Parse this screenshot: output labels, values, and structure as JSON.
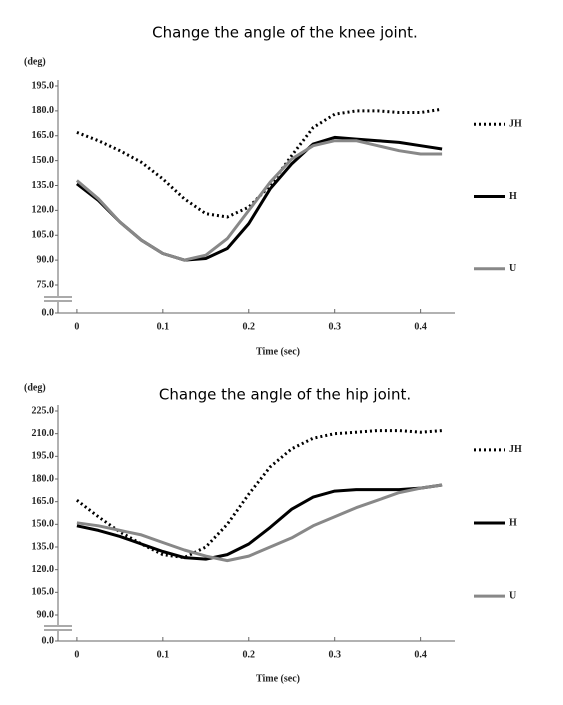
{
  "chart_data": [
    {
      "type": "line",
      "title": "Change the angle of the knee joint.",
      "ylabel": "(deg)",
      "xlabel": "Time (sec)",
      "x": [
        0,
        0.025,
        0.05,
        0.075,
        0.1,
        0.125,
        0.15,
        0.175,
        0.2,
        0.225,
        0.25,
        0.275,
        0.3,
        0.325,
        0.35,
        0.375,
        0.4,
        0.425
      ],
      "series": [
        {
          "name": "JH",
          "color": "#000000",
          "dash": "dotted",
          "values": [
            167,
            162,
            156,
            149,
            139,
            127,
            118,
            116,
            122,
            135,
            153,
            170,
            178,
            180,
            180,
            179,
            179,
            181
          ]
        },
        {
          "name": "H",
          "color": "#000000",
          "dash": "solid",
          "values": [
            136,
            126,
            113,
            102,
            94,
            90,
            91,
            97,
            112,
            133,
            148,
            160,
            164,
            163,
            162,
            161,
            159,
            157
          ]
        },
        {
          "name": "U",
          "color": "#888888",
          "dash": "solid",
          "values": [
            138,
            127,
            113,
            102,
            94,
            90,
            93,
            103,
            120,
            137,
            151,
            159,
            162,
            162,
            159,
            156,
            154,
            154
          ]
        }
      ],
      "xlim": [
        -0.022,
        0.44
      ],
      "xticks": [
        0,
        0.1,
        0.2,
        0.3,
        0.4
      ],
      "ylim": [
        0,
        195
      ],
      "yticks": [
        {
          "value": 0,
          "label": "0.0"
        },
        {
          "value": 75,
          "label": "75.0"
        },
        {
          "value": 90,
          "label": "90.0"
        },
        {
          "value": 105,
          "label": "105.0"
        },
        {
          "value": 120,
          "label": "120.0"
        },
        {
          "value": 135,
          "label": "135.0"
        },
        {
          "value": 150,
          "label": "150.0"
        },
        {
          "value": 165,
          "label": "165.0"
        },
        {
          "value": 180,
          "label": "180.0"
        },
        {
          "value": 195,
          "label": "195.0"
        }
      ],
      "y_axis_break": true,
      "grid": false,
      "legend": "right"
    },
    {
      "type": "line",
      "title": "Change the angle of the hip joint.",
      "ylabel": "(deg)",
      "xlabel": "Time (sec)",
      "x": [
        0,
        0.025,
        0.05,
        0.075,
        0.1,
        0.125,
        0.15,
        0.175,
        0.2,
        0.225,
        0.25,
        0.275,
        0.3,
        0.325,
        0.35,
        0.375,
        0.4,
        0.425
      ],
      "series": [
        {
          "name": "JH",
          "color": "#000000",
          "dash": "dotted",
          "values": [
            166,
            155,
            145,
            137,
            130,
            128,
            135,
            150,
            170,
            188,
            200,
            207,
            210,
            211,
            212,
            212,
            211,
            212
          ]
        },
        {
          "name": "H",
          "color": "#000000",
          "dash": "solid",
          "values": [
            149,
            146,
            142,
            137,
            132,
            128,
            127,
            130,
            137,
            148,
            160,
            168,
            172,
            173,
            173,
            173,
            174,
            176
          ]
        },
        {
          "name": "U",
          "color": "#888888",
          "dash": "solid",
          "values": [
            151,
            149,
            146,
            143,
            138,
            133,
            129,
            126,
            129,
            135,
            141,
            149,
            155,
            161,
            166,
            171,
            174,
            176
          ]
        }
      ],
      "xlim": [
        -0.022,
        0.44
      ],
      "xticks": [
        0,
        0.1,
        0.2,
        0.3,
        0.4
      ],
      "ylim": [
        0,
        225
      ],
      "yticks": [
        {
          "value": 0,
          "label": "0.0"
        },
        {
          "value": 90,
          "label": "90.0"
        },
        {
          "value": 105,
          "label": "105.0"
        },
        {
          "value": 120,
          "label": "120.0"
        },
        {
          "value": 135,
          "label": "135.0"
        },
        {
          "value": 150,
          "label": "150.0"
        },
        {
          "value": 165,
          "label": "165.0"
        },
        {
          "value": 180,
          "label": "180.0"
        },
        {
          "value": 195,
          "label": "195.0"
        },
        {
          "value": 210,
          "label": "210.0"
        },
        {
          "value": 225,
          "label": "225.0"
        }
      ],
      "y_axis_break": true,
      "grid": false,
      "legend": "right"
    }
  ]
}
